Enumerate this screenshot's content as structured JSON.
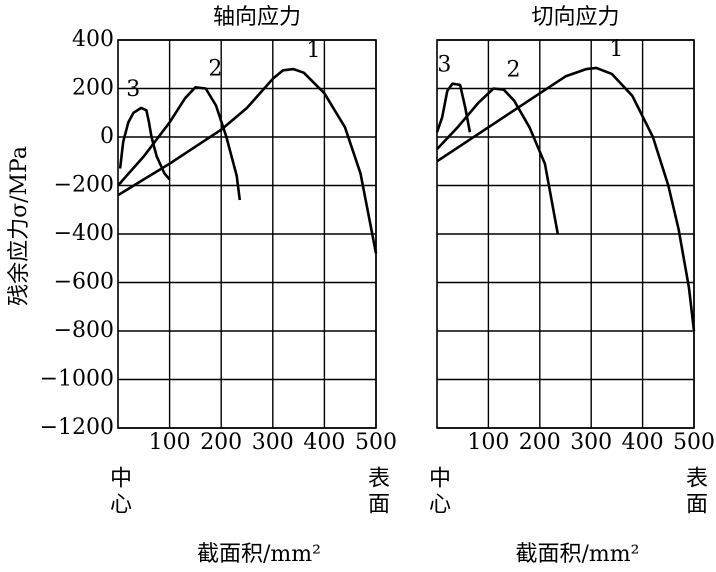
{
  "chart_data": [
    {
      "type": "line",
      "title": "轴向应力",
      "ylabel": "残余应力σ/MPa",
      "xlabel": "截面积/mm²",
      "x_start_label": "中心",
      "x_end_label": "表面",
      "xlim": [
        0,
        500
      ],
      "xticks": [
        100,
        200,
        300,
        400,
        500
      ],
      "ylim": [
        -1200,
        400
      ],
      "yticks": [
        {
          "value": -1200,
          "label": "−1200"
        },
        {
          "value": -1000,
          "label": "−1000"
        },
        {
          "value": -800,
          "label": "−800"
        },
        {
          "value": -600,
          "label": "−600"
        },
        {
          "value": -400,
          "label": "−400"
        },
        {
          "value": -200,
          "label": "−200"
        },
        0,
        200,
        400
      ],
      "show_ytick_labels": true,
      "grid": true,
      "series": [
        {
          "name": "1",
          "color": "#000000",
          "x": [
            0,
            50,
            100,
            150,
            200,
            250,
            300,
            320,
            340,
            360,
            400,
            440,
            470,
            500
          ],
          "values": [
            -240,
            -175,
            -110,
            -40,
            30,
            120,
            240,
            275,
            280,
            265,
            180,
            40,
            -150,
            -480
          ]
        },
        {
          "name": "2",
          "color": "#000000",
          "x": [
            0,
            50,
            100,
            130,
            150,
            170,
            190,
            210,
            230,
            236
          ],
          "values": [
            -200,
            -80,
            60,
            160,
            205,
            200,
            130,
            0,
            -160,
            -260
          ]
        },
        {
          "name": "3",
          "color": "#000000",
          "x": [
            4,
            10,
            20,
            30,
            45,
            55,
            60,
            65,
            75,
            90,
            100
          ],
          "values": [
            -130,
            -20,
            60,
            100,
            120,
            110,
            60,
            0,
            -80,
            -150,
            -175
          ]
        }
      ]
    },
    {
      "type": "line",
      "title": "切向应力",
      "xlabel": "截面积/mm²",
      "x_start_label": "中心",
      "x_end_label": "表面",
      "xlim": [
        0,
        500
      ],
      "xticks": [
        100,
        200,
        300,
        400,
        500
      ],
      "ylim": [
        -1200,
        400
      ],
      "yticks": [
        -1200,
        -1000,
        -800,
        -600,
        -400,
        -200,
        0,
        200,
        400
      ],
      "show_ytick_labels": false,
      "grid": true,
      "series": [
        {
          "name": "1",
          "color": "#000000",
          "x": [
            0,
            50,
            100,
            150,
            200,
            250,
            290,
            310,
            340,
            380,
            420,
            450,
            470,
            490,
            500
          ],
          "values": [
            -100,
            -30,
            40,
            110,
            180,
            250,
            280,
            285,
            260,
            170,
            0,
            -200,
            -380,
            -620,
            -800
          ]
        },
        {
          "name": "2",
          "color": "#000000",
          "x": [
            0,
            40,
            80,
            110,
            130,
            150,
            180,
            210,
            235
          ],
          "values": [
            -50,
            40,
            140,
            200,
            195,
            150,
            40,
            -110,
            -400
          ]
        },
        {
          "name": "3",
          "color": "#000000",
          "x": [
            0,
            10,
            20,
            30,
            45,
            55,
            64
          ],
          "values": [
            20,
            80,
            190,
            220,
            215,
            120,
            20
          ]
        }
      ]
    }
  ]
}
